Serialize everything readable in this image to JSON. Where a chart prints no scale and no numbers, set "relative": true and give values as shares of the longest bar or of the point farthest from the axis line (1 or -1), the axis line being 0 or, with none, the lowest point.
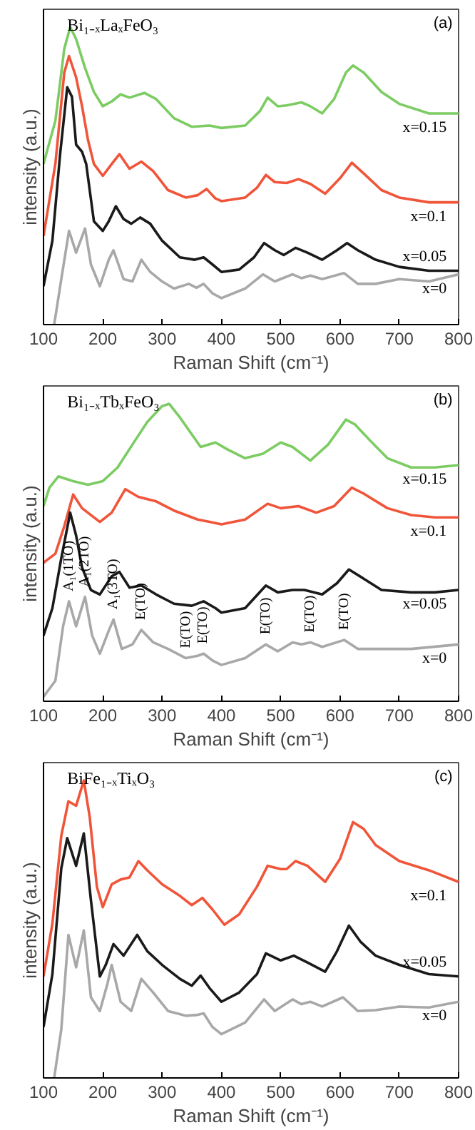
{
  "chart_data": [
    {
      "type": "line",
      "title": "Bi₁₋ₓLaₓFeO₃",
      "xlabel": "Raman Shift (cm⁻¹)",
      "ylabel": "intensity (a.u.)",
      "relative": true,
      "xlim": [
        100,
        800
      ],
      "xticks": [
        100,
        200,
        300,
        400,
        500,
        600,
        700,
        800
      ],
      "tick_labels": "x",
      "grid": false,
      "line_style": "solid",
      "annotations": [
        "(a)"
      ],
      "series": [
        {
          "name": "x=0.15",
          "color": "#7ccc63",
          "x": [
            100,
            120,
            135,
            145,
            155,
            170,
            185,
            200,
            215,
            230,
            245,
            270,
            290,
            320,
            350,
            380,
            400,
            440,
            465,
            478,
            495,
            510,
            535,
            550,
            570,
            590,
            610,
            622,
            640,
            670,
            700,
            750,
            800
          ],
          "values": [
            0.54,
            0.685,
            0.927,
            1.0,
            0.96,
            0.863,
            0.782,
            0.734,
            0.75,
            0.774,
            0.763,
            0.779,
            0.758,
            0.694,
            0.665,
            0.669,
            0.661,
            0.669,
            0.718,
            0.763,
            0.734,
            0.737,
            0.747,
            0.734,
            0.71,
            0.758,
            0.847,
            0.871,
            0.847,
            0.782,
            0.742,
            0.71,
            0.71
          ]
        },
        {
          "name": "x=0.1",
          "color": "#f0553a",
          "x": [
            100,
            120,
            135,
            143,
            155,
            165,
            175,
            185,
            200,
            215,
            228,
            245,
            265,
            285,
            310,
            340,
            360,
            375,
            390,
            400,
            440,
            460,
            475,
            490,
            510,
            530,
            550,
            575,
            600,
            620,
            640,
            670,
            700,
            750,
            800
          ],
          "values": [
            0.298,
            0.54,
            0.847,
            0.903,
            0.831,
            0.734,
            0.621,
            0.54,
            0.5,
            0.54,
            0.573,
            0.524,
            0.548,
            0.516,
            0.452,
            0.427,
            0.435,
            0.456,
            0.424,
            0.415,
            0.427,
            0.46,
            0.503,
            0.479,
            0.476,
            0.489,
            0.473,
            0.44,
            0.492,
            0.544,
            0.508,
            0.452,
            0.427,
            0.411,
            0.411
          ]
        },
        {
          "name": "x=0.05",
          "color": "#1a1a1a",
          "x": [
            100,
            115,
            128,
            140,
            148,
            155,
            165,
            172,
            185,
            200,
            210,
            222,
            235,
            248,
            263,
            280,
            300,
            330,
            355,
            370,
            385,
            400,
            430,
            455,
            472,
            490,
            505,
            525,
            545,
            570,
            595,
            612,
            630,
            660,
            700,
            750,
            800
          ],
          "values": [
            0.129,
            0.282,
            0.573,
            0.798,
            0.766,
            0.605,
            0.581,
            0.54,
            0.347,
            0.315,
            0.347,
            0.398,
            0.355,
            0.339,
            0.36,
            0.339,
            0.282,
            0.226,
            0.218,
            0.226,
            0.202,
            0.177,
            0.185,
            0.226,
            0.274,
            0.25,
            0.234,
            0.258,
            0.242,
            0.218,
            0.25,
            0.274,
            0.25,
            0.218,
            0.194,
            0.181,
            0.181
          ]
        },
        {
          "name": "x=0",
          "color": "#a8a8a8",
          "x": [
            118,
            130,
            143,
            155,
            170,
            180,
            195,
            210,
            218,
            235,
            250,
            265,
            280,
            300,
            320,
            345,
            358,
            370,
            385,
            400,
            440,
            470,
            490,
            520,
            535,
            550,
            570,
            607,
            630,
            660,
            700,
            750,
            800
          ],
          "values": [
            0.0,
            0.153,
            0.315,
            0.242,
            0.323,
            0.202,
            0.129,
            0.218,
            0.25,
            0.153,
            0.145,
            0.218,
            0.177,
            0.145,
            0.121,
            0.137,
            0.124,
            0.137,
            0.105,
            0.089,
            0.121,
            0.169,
            0.145,
            0.169,
            0.156,
            0.165,
            0.153,
            0.173,
            0.137,
            0.137,
            0.153,
            0.145,
            0.169
          ]
        }
      ]
    },
    {
      "type": "line",
      "title": "Bi₁₋ₓTbₓFeO₃",
      "xlabel": "Raman Shift (cm⁻¹)",
      "ylabel": "intensity (a.u.)",
      "relative": true,
      "xlim": [
        100,
        800
      ],
      "xticks": [
        100,
        200,
        300,
        400,
        500,
        600,
        700,
        800
      ],
      "tick_labels": "x",
      "grid": false,
      "line_style": "solid",
      "annotations": [
        "(b)",
        {
          "text": "A₁(1TO)",
          "x": 143,
          "y": 0.336
        },
        {
          "text": "A₁(2TO)",
          "x": 170,
          "y": 0.351
        },
        {
          "text": "A₁(3TO)",
          "x": 218,
          "y": 0.275
        },
        {
          "text": "E(TO)",
          "x": 265,
          "y": 0.24
        },
        {
          "text": "E(TO)",
          "x": 340,
          "y": 0.145
        },
        {
          "text": "E(TO)",
          "x": 370,
          "y": 0.16
        },
        {
          "text": "E(TO)",
          "x": 475,
          "y": 0.191
        },
        {
          "text": "E(TO)",
          "x": 550,
          "y": 0.198
        },
        {
          "text": "E(TO)",
          "x": 607,
          "y": 0.206
        }
      ],
      "series": [
        {
          "name": "x=0.15",
          "color": "#7ccc63",
          "x": [
            100,
            110,
            125,
            150,
            175,
            200,
            225,
            250,
            275,
            300,
            312,
            330,
            365,
            390,
            410,
            440,
            470,
            500,
            520,
            550,
            580,
            610,
            625,
            650,
            680,
            720,
            760,
            800
          ],
          "values": [
            0.656,
            0.718,
            0.756,
            0.74,
            0.728,
            0.74,
            0.786,
            0.863,
            0.939,
            0.992,
            1.0,
            0.954,
            0.855,
            0.87,
            0.847,
            0.817,
            0.832,
            0.87,
            0.855,
            0.809,
            0.863,
            0.947,
            0.931,
            0.878,
            0.817,
            0.786,
            0.786,
            0.794
          ]
        },
        {
          "name": "x=0.1",
          "color": "#f0553a",
          "x": [
            100,
            120,
            135,
            150,
            165,
            195,
            215,
            238,
            260,
            290,
            320,
            360,
            380,
            400,
            440,
            478,
            500,
            530,
            560,
            590,
            620,
            640,
            680,
            720,
            760,
            800
          ],
          "values": [
            0.466,
            0.496,
            0.588,
            0.695,
            0.649,
            0.603,
            0.634,
            0.713,
            0.687,
            0.672,
            0.641,
            0.611,
            0.603,
            0.595,
            0.611,
            0.664,
            0.649,
            0.656,
            0.634,
            0.656,
            0.718,
            0.698,
            0.649,
            0.626,
            0.618,
            0.618
          ]
        },
        {
          "name": "x=0.05",
          "color": "#1a1a1a",
          "x": [
            100,
            115,
            130,
            145,
            155,
            165,
            180,
            195,
            215,
            228,
            245,
            265,
            290,
            320,
            350,
            370,
            390,
            400,
            440,
            475,
            495,
            520,
            540,
            570,
            595,
            615,
            640,
            670,
            720,
            760,
            800
          ],
          "values": [
            0.221,
            0.313,
            0.481,
            0.634,
            0.557,
            0.45,
            0.374,
            0.359,
            0.42,
            0.435,
            0.382,
            0.389,
            0.359,
            0.328,
            0.321,
            0.336,
            0.313,
            0.298,
            0.313,
            0.389,
            0.366,
            0.374,
            0.374,
            0.359,
            0.397,
            0.443,
            0.412,
            0.374,
            0.366,
            0.366,
            0.374
          ]
        },
        {
          "name": "x=0",
          "color": "#a8a8a8",
          "x": [
            100,
            120,
            133,
            143,
            155,
            170,
            182,
            195,
            210,
            218,
            232,
            250,
            265,
            285,
            310,
            340,
            360,
            370,
            385,
            400,
            440,
            475,
            495,
            520,
            535,
            550,
            570,
            607,
            630,
            680,
            720,
            800
          ],
          "values": [
            0.015,
            0.069,
            0.252,
            0.336,
            0.252,
            0.351,
            0.221,
            0.16,
            0.237,
            0.275,
            0.176,
            0.191,
            0.24,
            0.198,
            0.176,
            0.145,
            0.153,
            0.16,
            0.137,
            0.122,
            0.145,
            0.191,
            0.168,
            0.198,
            0.191,
            0.198,
            0.183,
            0.206,
            0.176,
            0.176,
            0.176,
            0.191
          ]
        }
      ]
    },
    {
      "type": "line",
      "title": "BiFe₁₋ₓTiₓO₃",
      "xlabel": "Raman Shift (cm⁻¹)",
      "ylabel": "intensity (a.u.)",
      "relative": true,
      "xlim": [
        100,
        800
      ],
      "xticks": [
        100,
        200,
        300,
        400,
        500,
        600,
        700,
        800
      ],
      "tick_labels": "x",
      "grid": false,
      "line_style": "solid",
      "annotations": [
        "(c)"
      ],
      "series": [
        {
          "name": "x=0.1",
          "color": "#f0553a",
          "x": [
            100,
            115,
            130,
            142,
            155,
            168,
            178,
            190,
            200,
            215,
            230,
            245,
            260,
            275,
            300,
            330,
            350,
            368,
            385,
            405,
            430,
            460,
            478,
            500,
            510,
            525,
            545,
            575,
            600,
            622,
            640,
            660,
            700,
            750,
            800
          ],
          "values": [
            0.341,
            0.519,
            0.814,
            0.93,
            0.915,
            1.0,
            0.876,
            0.643,
            0.574,
            0.651,
            0.667,
            0.674,
            0.729,
            0.698,
            0.651,
            0.612,
            0.581,
            0.605,
            0.566,
            0.515,
            0.55,
            0.643,
            0.713,
            0.702,
            0.702,
            0.729,
            0.713,
            0.659,
            0.736,
            0.86,
            0.837,
            0.783,
            0.729,
            0.698,
            0.659
          ]
        },
        {
          "name": "x=0.05",
          "color": "#1a1a1a",
          "x": [
            100,
            115,
            130,
            140,
            155,
            168,
            180,
            195,
            205,
            218,
            235,
            258,
            275,
            300,
            330,
            350,
            365,
            380,
            400,
            430,
            460,
            475,
            500,
            522,
            545,
            575,
            595,
            615,
            635,
            660,
            700,
            750,
            800
          ],
          "values": [
            0.171,
            0.349,
            0.705,
            0.806,
            0.713,
            0.822,
            0.597,
            0.341,
            0.38,
            0.45,
            0.411,
            0.481,
            0.426,
            0.38,
            0.333,
            0.31,
            0.344,
            0.302,
            0.256,
            0.287,
            0.349,
            0.419,
            0.395,
            0.411,
            0.388,
            0.357,
            0.426,
            0.512,
            0.457,
            0.411,
            0.38,
            0.349,
            0.341
          ]
        },
        {
          "name": "x=0",
          "color": "#a8a8a8",
          "x": [
            118,
            130,
            142,
            155,
            168,
            180,
            195,
            208,
            215,
            230,
            248,
            265,
            285,
            310,
            340,
            360,
            370,
            385,
            400,
            440,
            472,
            490,
            520,
            535,
            550,
            570,
            605,
            630,
            660,
            700,
            750,
            800
          ],
          "values": [
            0.0,
            0.163,
            0.481,
            0.372,
            0.496,
            0.271,
            0.225,
            0.318,
            0.38,
            0.256,
            0.225,
            0.333,
            0.287,
            0.225,
            0.209,
            0.212,
            0.217,
            0.171,
            0.147,
            0.186,
            0.264,
            0.225,
            0.264,
            0.248,
            0.256,
            0.24,
            0.271,
            0.225,
            0.228,
            0.24,
            0.237,
            0.256
          ]
        }
      ]
    }
  ]
}
